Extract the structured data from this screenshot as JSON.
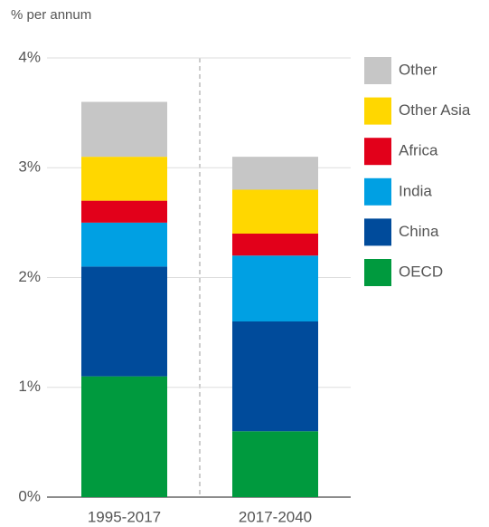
{
  "chart_data": {
    "type": "stacked_bar",
    "y_axis_label": "% per annum",
    "categories": [
      "1995-2017",
      "2017-2040"
    ],
    "series": [
      {
        "name": "OECD",
        "color": "#009a3e",
        "values": [
          1.1,
          0.6
        ]
      },
      {
        "name": "China",
        "color": "#004b9b",
        "values": [
          1.0,
          1.0
        ]
      },
      {
        "name": "India",
        "color": "#00a0e3",
        "values": [
          0.4,
          0.6
        ]
      },
      {
        "name": "Africa",
        "color": "#e2001a",
        "values": [
          0.2,
          0.2
        ]
      },
      {
        "name": "Other Asia",
        "color": "#ffd700",
        "values": [
          0.4,
          0.4
        ]
      },
      {
        "name": "Other",
        "color": "#c6c6c6",
        "values": [
          0.5,
          0.3
        ]
      }
    ],
    "ylim": [
      0,
      4
    ],
    "yticks": [
      {
        "value": 0,
        "label": "0%"
      },
      {
        "value": 1,
        "label": "1%"
      },
      {
        "value": 2,
        "label": "2%"
      },
      {
        "value": 3,
        "label": "3%"
      },
      {
        "value": 4,
        "label": "4%"
      }
    ],
    "grid": true,
    "legend": "right"
  }
}
